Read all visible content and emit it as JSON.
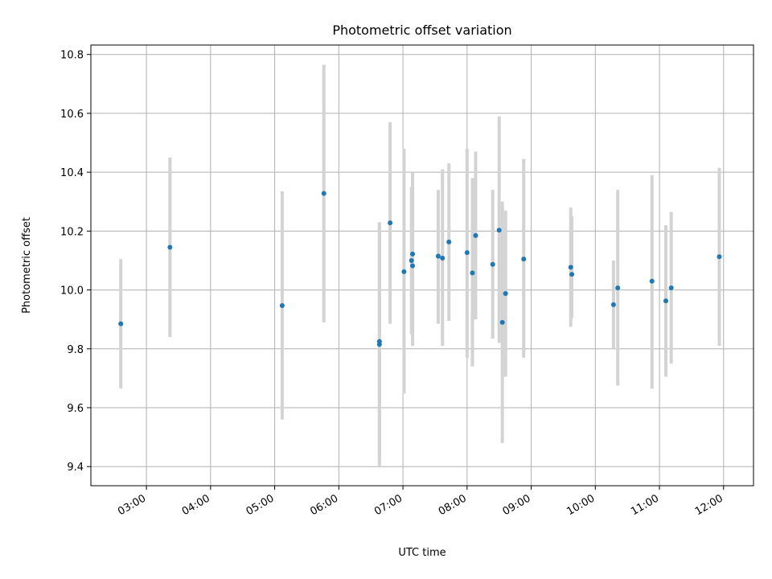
{
  "chart_data": {
    "type": "scatter",
    "title": "Photometric offset variation",
    "xlabel": "UTC time",
    "ylabel": "Photometric offset",
    "xlim": [
      "02:08",
      "12:28"
    ],
    "ylim": [
      9.335,
      10.832
    ],
    "grid": true,
    "x_ticks": [
      "03:00",
      "04:00",
      "05:00",
      "06:00",
      "07:00",
      "08:00",
      "09:00",
      "10:00",
      "11:00",
      "12:00"
    ],
    "y_ticks": [
      "9.4",
      "9.6",
      "9.8",
      "10.0",
      "10.2",
      "10.4",
      "10.6",
      "10.8"
    ],
    "colors": {
      "point": "#1f77b4",
      "errorbar": "#d3d3d3",
      "grid": "#b0b0b0"
    },
    "points": [
      {
        "x": "02:36",
        "y": 9.885,
        "y_low": 9.665,
        "y_high": 10.105
      },
      {
        "x": "03:22",
        "y": 10.145,
        "y_low": 9.84,
        "y_high": 10.45
      },
      {
        "x": "05:07",
        "y": 9.947,
        "y_low": 9.56,
        "y_high": 10.335
      },
      {
        "x": "05:46",
        "y": 10.328,
        "y_low": 9.89,
        "y_high": 10.765
      },
      {
        "x": "06:38",
        "y": 9.815,
        "y_low": 9.4,
        "y_high": 10.23
      },
      {
        "x": "06:38",
        "y": 9.825,
        "y_low": 9.42,
        "y_high": 10.23
      },
      {
        "x": "06:48",
        "y": 10.228,
        "y_low": 9.885,
        "y_high": 10.57
      },
      {
        "x": "07:01",
        "y": 10.062,
        "y_low": 9.648,
        "y_high": 10.48
      },
      {
        "x": "07:08",
        "y": 10.1,
        "y_low": 9.85,
        "y_high": 10.35
      },
      {
        "x": "07:09",
        "y": 10.122,
        "y_low": 9.84,
        "y_high": 10.4
      },
      {
        "x": "07:09",
        "y": 10.082,
        "y_low": 9.81,
        "y_high": 10.36
      },
      {
        "x": "07:33",
        "y": 10.115,
        "y_low": 9.885,
        "y_high": 10.34
      },
      {
        "x": "07:37",
        "y": 10.108,
        "y_low": 9.81,
        "y_high": 10.41
      },
      {
        "x": "07:43",
        "y": 10.163,
        "y_low": 9.895,
        "y_high": 10.43
      },
      {
        "x": "08:00",
        "y": 10.127,
        "y_low": 9.77,
        "y_high": 10.48
      },
      {
        "x": "08:05",
        "y": 10.058,
        "y_low": 9.74,
        "y_high": 10.38
      },
      {
        "x": "08:08",
        "y": 10.185,
        "y_low": 9.9,
        "y_high": 10.47
      },
      {
        "x": "08:24",
        "y": 10.087,
        "y_low": 9.835,
        "y_high": 10.34
      },
      {
        "x": "08:30",
        "y": 10.203,
        "y_low": 9.82,
        "y_high": 10.59
      },
      {
        "x": "08:33",
        "y": 9.89,
        "y_low": 9.48,
        "y_high": 10.3
      },
      {
        "x": "08:36",
        "y": 9.988,
        "y_low": 9.705,
        "y_high": 10.27
      },
      {
        "x": "08:53",
        "y": 10.105,
        "y_low": 9.77,
        "y_high": 10.445
      },
      {
        "x": "09:37",
        "y": 10.077,
        "y_low": 9.875,
        "y_high": 10.28
      },
      {
        "x": "09:38",
        "y": 10.053,
        "y_low": 9.905,
        "y_high": 10.25
      },
      {
        "x": "10:17",
        "y": 9.95,
        "y_low": 9.8,
        "y_high": 10.1
      },
      {
        "x": "10:21",
        "y": 10.007,
        "y_low": 9.675,
        "y_high": 10.34
      },
      {
        "x": "10:53",
        "y": 10.03,
        "y_low": 9.665,
        "y_high": 10.39
      },
      {
        "x": "11:06",
        "y": 9.963,
        "y_low": 9.705,
        "y_high": 10.22
      },
      {
        "x": "11:11",
        "y": 10.007,
        "y_low": 9.75,
        "y_high": 10.265
      },
      {
        "x": "11:56",
        "y": 10.113,
        "y_low": 9.81,
        "y_high": 10.415
      }
    ]
  }
}
